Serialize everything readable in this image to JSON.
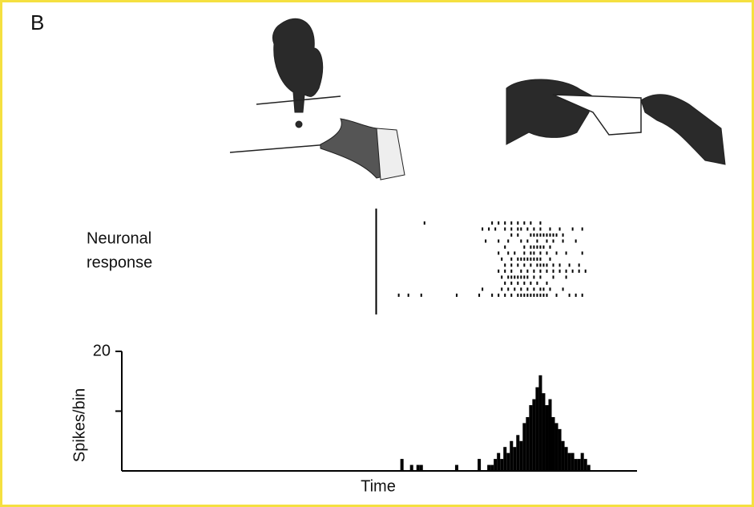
{
  "panel_label": "B",
  "raster": {
    "type": "raster",
    "label_lines": [
      "Neuronal",
      "response"
    ],
    "alignment": 79,
    "trials": [
      [
        94,
        115,
        117,
        119,
        121,
        123,
        125,
        127,
        130
      ],
      [
        112,
        114,
        116,
        119,
        121,
        123,
        124,
        126,
        128,
        130,
        133,
        136,
        140,
        143
      ],
      [
        121,
        123,
        127,
        128,
        129,
        130,
        131,
        132,
        133,
        134,
        135,
        137
      ],
      [
        113,
        117,
        120,
        124,
        126,
        129,
        132,
        134,
        137,
        141
      ],
      [
        119,
        125,
        127,
        128,
        129,
        130,
        131,
        133
      ],
      [
        117,
        120,
        122,
        125,
        127,
        128,
        130,
        132,
        135,
        138,
        143
      ],
      [
        118,
        121,
        123,
        124,
        125,
        126,
        127,
        128,
        129,
        130,
        133
      ],
      [
        119,
        121,
        123,
        125,
        127,
        129,
        130,
        131,
        132,
        134,
        136,
        139,
        142
      ],
      [
        117,
        119,
        121,
        124,
        126,
        128,
        130,
        132,
        134,
        136,
        138,
        140,
        142,
        144
      ],
      [
        118,
        120,
        121,
        122,
        123,
        124,
        125,
        126,
        128,
        130,
        134,
        138
      ],
      [
        119,
        121,
        123,
        125,
        127,
        129,
        132
      ],
      [
        112,
        118,
        120,
        122,
        124,
        126,
        128,
        130,
        131,
        133,
        137
      ],
      [
        86,
        89,
        93,
        104,
        111,
        115,
        117,
        119,
        121,
        123,
        124,
        125,
        126,
        127,
        128,
        129,
        130,
        131,
        132,
        135,
        139,
        141,
        143
      ]
    ]
  },
  "chart_data": {
    "type": "bar",
    "xlabel": "Time",
    "ylabel": "Spikes/bin",
    "color": "#000000",
    "x": [
      87,
      90,
      92,
      93,
      104,
      111,
      114,
      115,
      116,
      117,
      118,
      119,
      120,
      121,
      122,
      123,
      124,
      125,
      126,
      127,
      128,
      129,
      130,
      131,
      132,
      133,
      134,
      135,
      136,
      137,
      138,
      139,
      140,
      141,
      142,
      143,
      144,
      145
    ],
    "values": [
      2,
      1,
      1,
      1,
      1,
      2,
      1,
      1,
      2,
      3,
      2,
      4,
      3,
      5,
      4,
      6,
      5,
      8,
      9,
      11,
      12,
      14,
      16,
      13,
      11,
      12,
      9,
      8,
      7,
      5,
      4,
      3,
      3,
      2,
      2,
      3,
      2,
      1
    ],
    "xlim": [
      0,
      160
    ],
    "ylim": [
      0,
      20
    ],
    "yticks": [
      {
        "value": 10,
        "label": null
      },
      20
    ]
  }
}
